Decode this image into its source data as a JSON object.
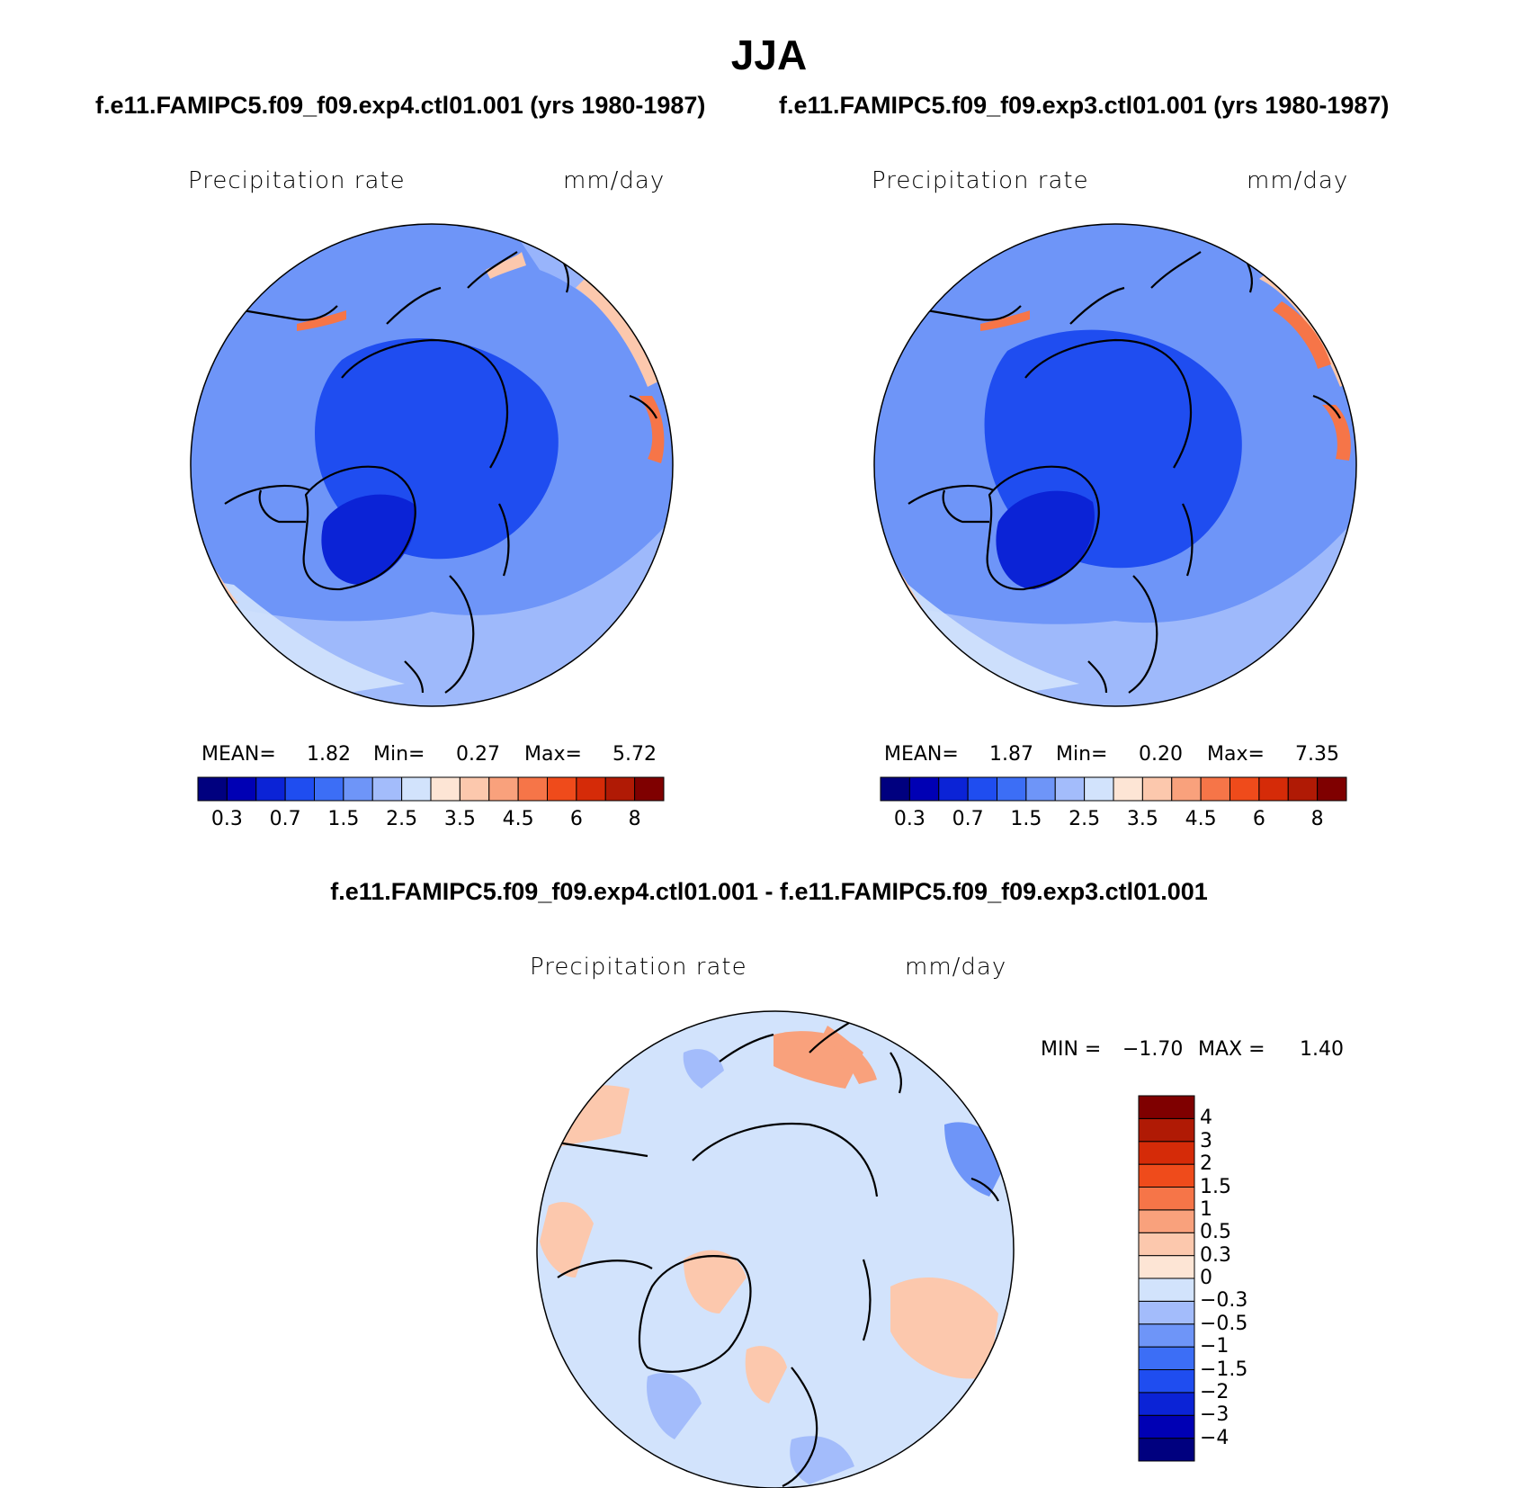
{
  "season": "JJA",
  "panels": [
    {
      "case": "f.e11.FAMIPC5.f09_f09.exp4.ctl01.001 (yrs 1980-1987)",
      "variable": "Precipitation rate",
      "units": "mm/day",
      "stats": {
        "mean_label": "MEAN=",
        "mean": "1.82",
        "min_label": "Min=",
        "min": "0.27",
        "max_label": "Max=",
        "max": "5.72"
      }
    },
    {
      "case": "f.e11.FAMIPC5.f09_f09.exp3.ctl01.001 (yrs 1980-1987)",
      "variable": "Precipitation rate",
      "units": "mm/day",
      "stats": {
        "mean_label": "MEAN=",
        "mean": "1.87",
        "min_label": "Min=",
        "min": "0.20",
        "max_label": "Max=",
        "max": "7.35"
      }
    }
  ],
  "diff_panel": {
    "title": "f.e11.FAMIPC5.f09_f09.exp4.ctl01.001 - f.e11.FAMIPC5.f09_f09.exp3.ctl01.001",
    "variable": "Precipitation rate",
    "units": "mm/day",
    "stats": {
      "min_label": "MIN =",
      "min": "−1.70",
      "max_label": "MAX =",
      "max": "1.40"
    }
  },
  "abs_colorbar": {
    "colors": [
      "#00007f",
      "#0000b4",
      "#0b23d6",
      "#1f4df0",
      "#3c6ef6",
      "#6e95f8",
      "#a3bcfb",
      "#d2e3fc",
      "#fde5d5",
      "#fcc8ad",
      "#f9a17c",
      "#f67548",
      "#ef4b1b",
      "#d52b08",
      "#b01a05",
      "#7f0000"
    ],
    "tick_labels": [
      "0.3",
      "0.7",
      "1.5",
      "2.5",
      "3.5",
      "4.5",
      "6",
      "8"
    ]
  },
  "diff_colorbar": {
    "colors": [
      "#00007f",
      "#0000b4",
      "#0b23d6",
      "#1f4df0",
      "#3c6ef6",
      "#6e95f8",
      "#a3bcfb",
      "#d2e3fc",
      "#fde5d5",
      "#fcc8ad",
      "#f9a17c",
      "#f67548",
      "#ef4b1b",
      "#d52b08",
      "#b01a05",
      "#7f0000"
    ],
    "tick_labels": [
      "−4",
      "−3",
      "−2",
      "−1.5",
      "−1",
      "−0.5",
      "−0.3",
      "0",
      "0.3",
      "0.5",
      "1",
      "1.5",
      "2",
      "3",
      "4"
    ]
  },
  "field_palette": {
    "ocean_abs": "#6e95f8",
    "arctic_abs": "#1f4df0",
    "greenland_abs": "#0b23d6",
    "warm_abs": "#fcc8ad",
    "hot_abs": "#f67548",
    "light_abs": "#a3bcfb",
    "pale_abs": "#d2e3fc",
    "diff_base": "#d2e3fc",
    "diff_pos": "#fcc8ad",
    "diff_pos2": "#f9a17c",
    "diff_neg": "#a3bcfb",
    "diff_neg2": "#6e95f8"
  }
}
